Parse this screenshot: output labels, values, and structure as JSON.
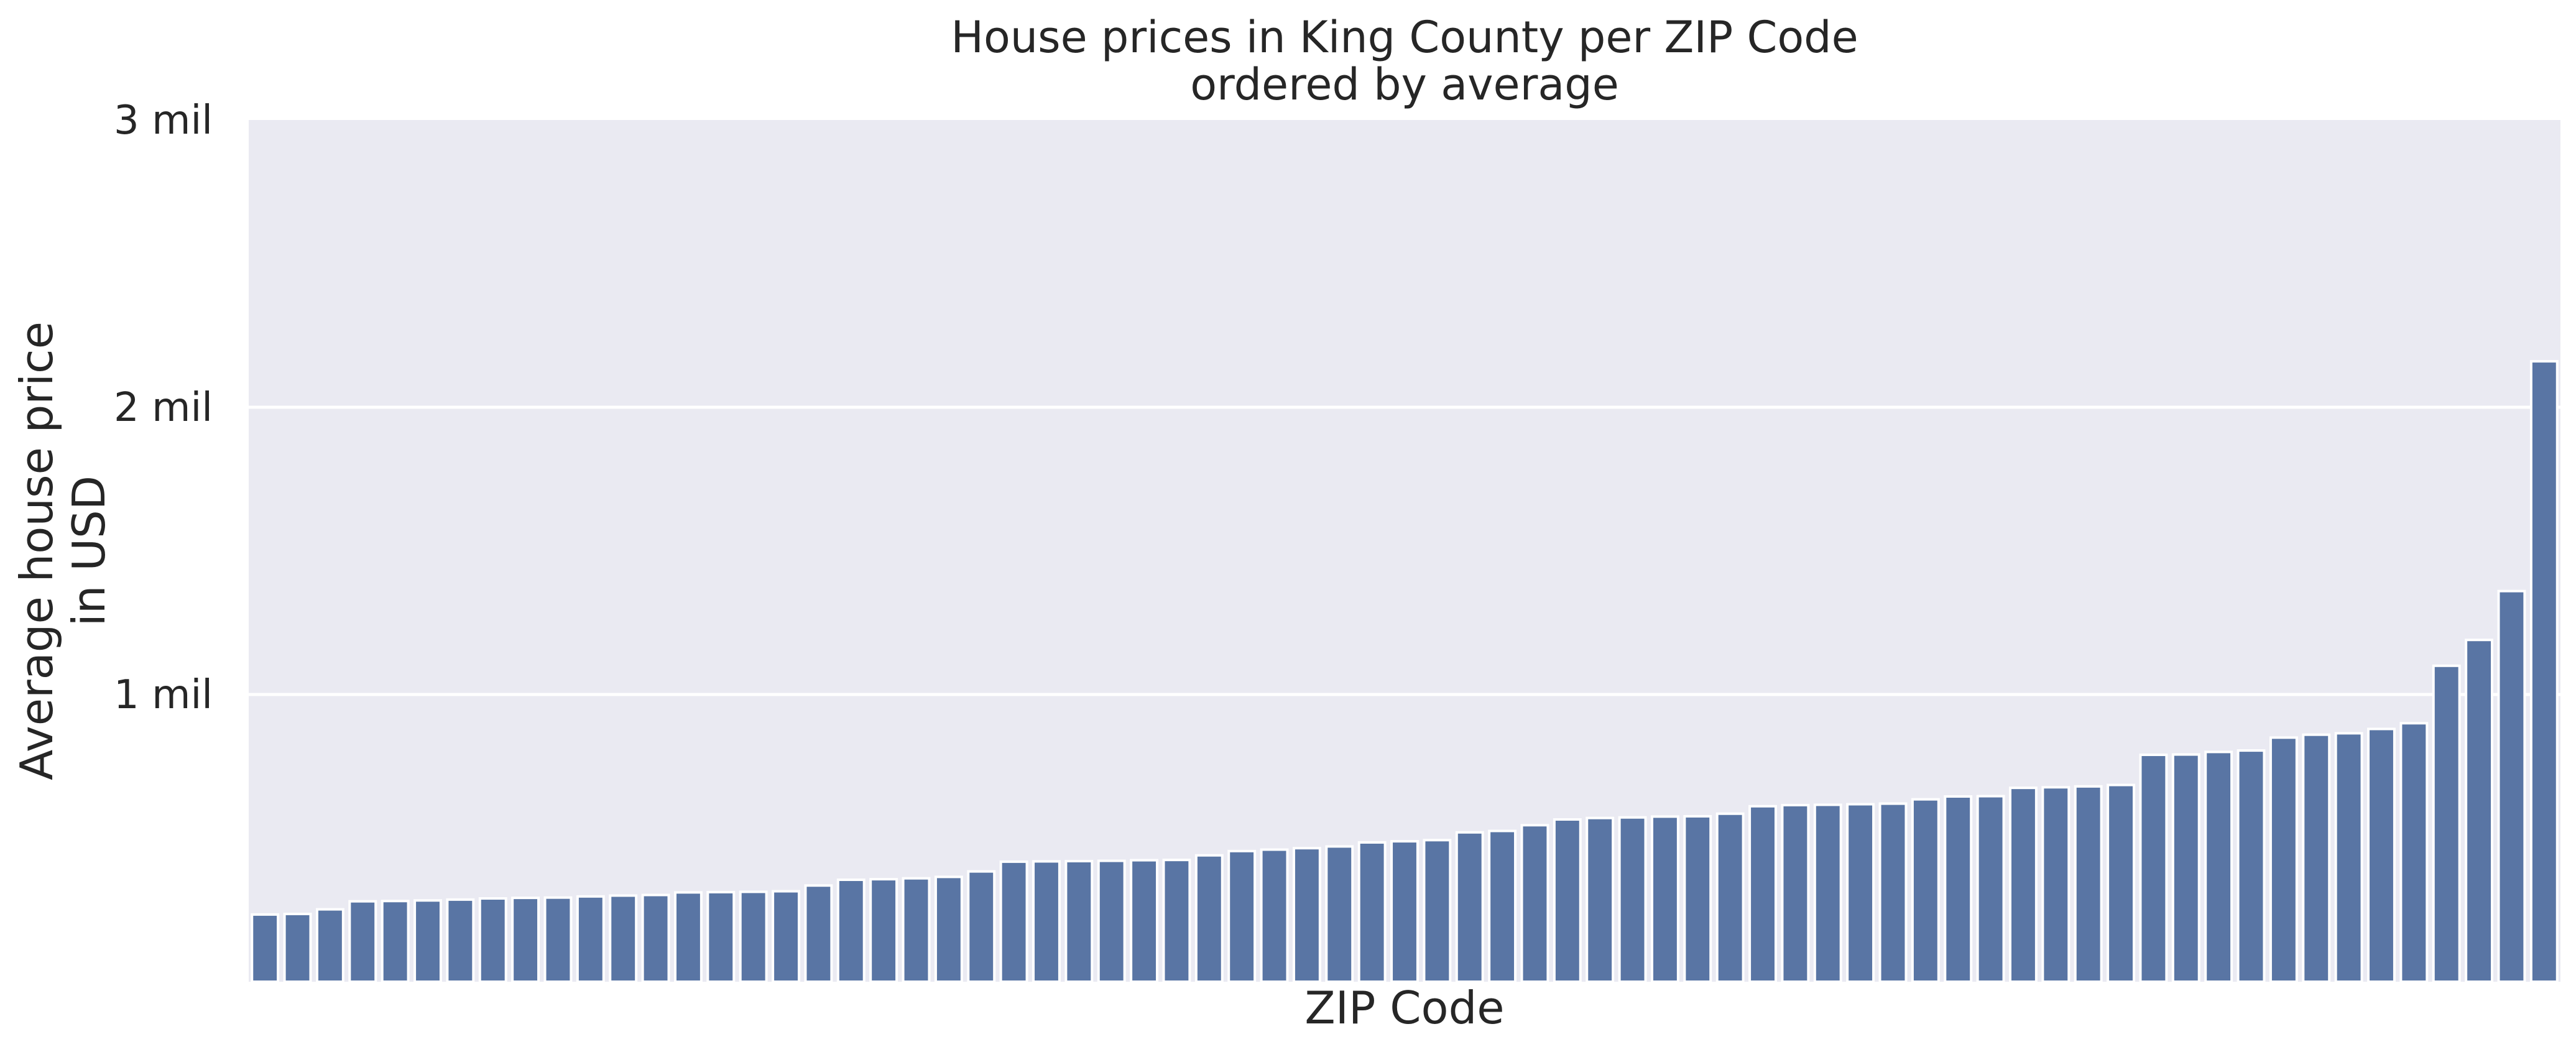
{
  "chart_data": {
    "type": "bar",
    "title": [
      "House prices in King County per ZIP Code",
      "ordered by average"
    ],
    "xlabel": "ZIP Code",
    "ylabel": [
      "Average house price",
      "in USD"
    ],
    "ylim": [
      0,
      3000000
    ],
    "yticks": [
      {
        "value": 1000000,
        "label": "1 mil"
      },
      {
        "value": 2000000,
        "label": "2 mil"
      },
      {
        "value": 3000000,
        "label": "3 mil"
      }
    ],
    "grid": "y",
    "bar_color": "#5975a4",
    "background_color": "#eaeaf2",
    "categories_shown": false,
    "values": [
      234000,
      236000,
      252000,
      280000,
      281000,
      283000,
      286000,
      290000,
      292000,
      293000,
      297000,
      300000,
      302000,
      311000,
      312000,
      313000,
      315000,
      335000,
      355000,
      357000,
      360000,
      365000,
      384000,
      418000,
      419000,
      420000,
      421000,
      423000,
      424000,
      440000,
      455000,
      460000,
      465000,
      471000,
      485000,
      489000,
      493000,
      520000,
      525000,
      545000,
      565000,
      570000,
      572000,
      575000,
      576000,
      585000,
      611000,
      615000,
      616000,
      618000,
      620000,
      635000,
      645000,
      646000,
      675000,
      677000,
      680000,
      685000,
      790000,
      791000,
      800000,
      805000,
      850000,
      860000,
      865000,
      880000,
      900000,
      1100000,
      1190000,
      1360000,
      2160000
    ]
  }
}
